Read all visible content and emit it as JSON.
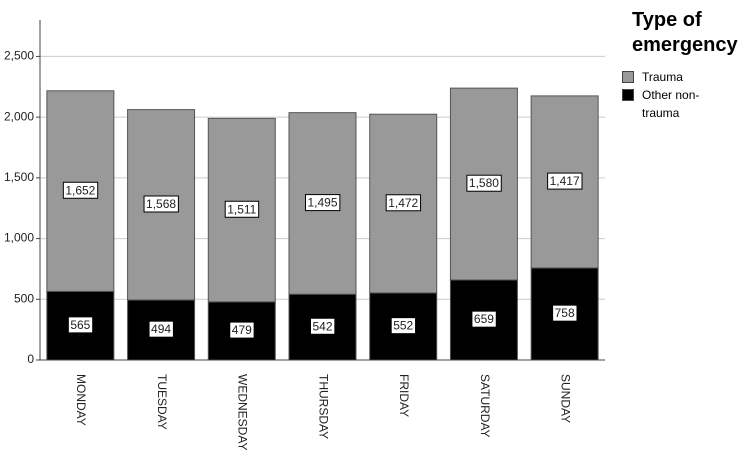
{
  "chart_data": {
    "type": "stacked-bar",
    "categories": [
      "MONDAY",
      "TUESDAY",
      "WEDNESDAY",
      "THURSDAY",
      "FRIDAY",
      "SATURDAY",
      "SUNDAY"
    ],
    "legend_title": "Type of emergency",
    "series": [
      {
        "name": "Other non-trauma",
        "color": "#000000",
        "values": [
          565,
          494,
          479,
          542,
          552,
          659,
          758
        ],
        "value_labels": [
          "565",
          "494",
          "479",
          "542",
          "552",
          "659",
          "758"
        ]
      },
      {
        "name": "Trauma",
        "color": "#999999",
        "values": [
          1652,
          1568,
          1511,
          1495,
          1472,
          1580,
          1417
        ],
        "value_labels": [
          "1,652",
          "1,568",
          "1,511",
          "1,495",
          "1,472",
          "1,580",
          "1,417"
        ]
      }
    ],
    "ylim": [
      0,
      2800
    ],
    "yticks": [
      0,
      500,
      {
        "value": 1000,
        "label": "1,000"
      },
      {
        "value": 1500,
        "label": "1,500"
      },
      {
        "value": 2000,
        "label": "2,000"
      },
      {
        "value": 2500,
        "label": "2,500"
      }
    ],
    "grid": true
  }
}
